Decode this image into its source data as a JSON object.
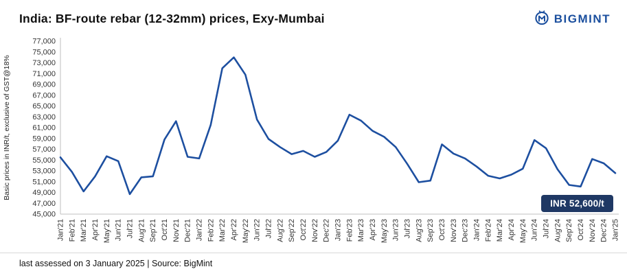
{
  "header": {
    "title": "India: BF-route rebar (12-32mm) prices, Exy-Mumbai",
    "logo_text": "BIGMINT"
  },
  "chart_data": {
    "type": "line",
    "title": "India: BF-route rebar (12-32mm) prices, Exy-Mumbai",
    "ylabel": "Basic prices in INR/t,  exclusive of GST@18%",
    "xlabel": "",
    "ylim": [
      45000,
      77000
    ],
    "ytick_step": 2000,
    "grid": false,
    "legend": "none",
    "line_color": "#1d4fa0",
    "categories": [
      "Jan'21",
      "Feb'21",
      "Mar'21",
      "Apr'21",
      "May'21",
      "Jun'21",
      "Jul'21",
      "Aug'21",
      "Sep'21",
      "Oct'21",
      "Nov'21",
      "Dec'21",
      "Jan'22",
      "Feb'22",
      "Mar'22",
      "Apr'22",
      "May'22",
      "Jun'22",
      "Jul'22",
      "Aug'22",
      "Sep'22",
      "Oct'22",
      "Nov'22",
      "Dec'22",
      "Jan'23",
      "Feb'23",
      "Mar'23",
      "Apr'23",
      "May'23",
      "Jun'23",
      "Jul'23",
      "Aug'23",
      "Sep'23",
      "Oct'23",
      "Nov'23",
      "Dec'23",
      "Jan'24",
      "Feb'24",
      "Mar'24",
      "Apr'24",
      "May'24",
      "Jun'24",
      "Jul'24",
      "Aug'24",
      "Sep'24",
      "Oct'24",
      "Nov'24",
      "Dec'24",
      "Jan'25"
    ],
    "values": [
      55500,
      52800,
      49200,
      52000,
      55700,
      54800,
      48700,
      51800,
      52000,
      58800,
      62200,
      55600,
      55300,
      61500,
      72000,
      74000,
      70800,
      62500,
      58900,
      57400,
      56100,
      56700,
      55600,
      56500,
      58600,
      63400,
      62300,
      60400,
      59300,
      57400,
      54300,
      50900,
      51200,
      57900,
      56200,
      55300,
      53800,
      52100,
      51600,
      52300,
      53400,
      58700,
      57200,
      53300,
      50400,
      50100,
      55200,
      54400,
      52600
    ],
    "annotation": "INR 52,600/t"
  },
  "footer": {
    "text": "last assessed on 3 January 2025 | Source: BigMint"
  },
  "colors": {
    "accent": "#1d4fa0",
    "badge_bg": "#1f3864",
    "logo_blue": "#1b4f9e"
  }
}
